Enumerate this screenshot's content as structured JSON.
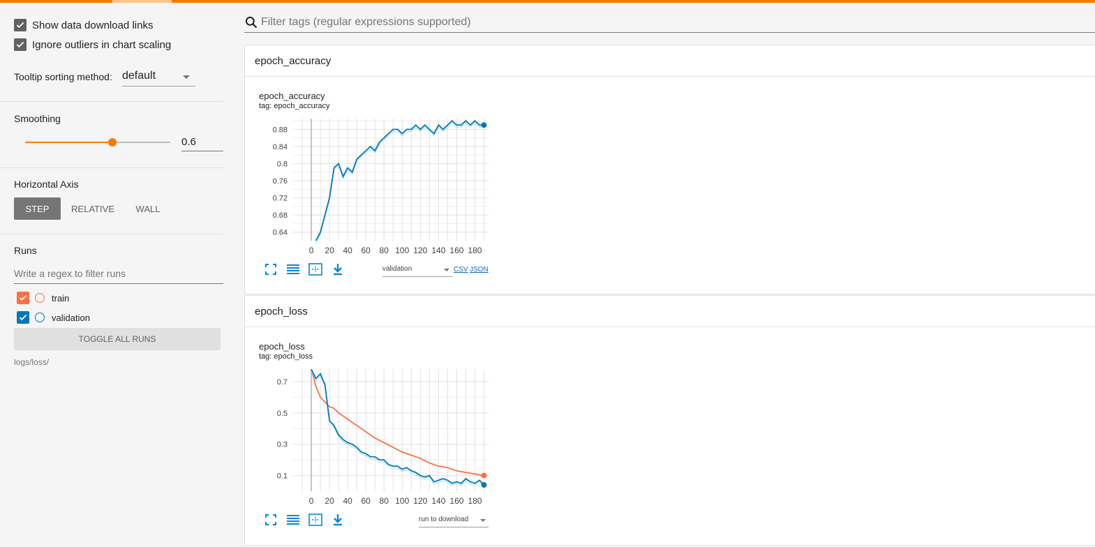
{
  "colors": {
    "accent": "#f57c00",
    "train": "#ff7043",
    "validation": "#0077bb",
    "validation_raw": "#a6d4ec"
  },
  "sidebar": {
    "show_download_links": {
      "label": "Show data download links",
      "checked": true
    },
    "ignore_outliers": {
      "label": "Ignore outliers in chart scaling",
      "checked": true
    },
    "tooltip_sorting": {
      "label": "Tooltip sorting method:",
      "value": "default"
    },
    "smoothing": {
      "title": "Smoothing",
      "value": "0.6",
      "fraction": 0.6
    },
    "horizontal_axis": {
      "title": "Horizontal Axis",
      "options": [
        "STEP",
        "RELATIVE",
        "WALL"
      ],
      "selected": "STEP"
    },
    "runs": {
      "title": "Runs",
      "filter_placeholder": "Write a regex to filter runs",
      "items": [
        {
          "label": "train",
          "checked": true,
          "color": "#ff7043"
        },
        {
          "label": "validation",
          "checked": true,
          "color": "#0077bb"
        }
      ],
      "toggle_all_label": "TOGGLE ALL RUNS",
      "logdir": "logs/loss/"
    }
  },
  "main": {
    "search_placeholder": "Filter tags (regular expressions supported)",
    "categories": [
      {
        "name": "epoch_accuracy",
        "card": {
          "title": "epoch_accuracy",
          "tag": "tag: epoch_accuracy",
          "download_select": "validation",
          "csv": "CSV",
          "json": "JSON"
        }
      },
      {
        "name": "epoch_loss",
        "card": {
          "title": "epoch_loss",
          "tag": "tag: epoch_loss",
          "download_select": "run to download"
        }
      }
    ]
  },
  "chart_data": [
    {
      "type": "line",
      "title": "epoch_accuracy",
      "xlabel": "",
      "ylabel": "",
      "xlim": [
        -20,
        195
      ],
      "ylim": [
        0.62,
        0.905
      ],
      "xticks": [
        "0",
        "20",
        "40",
        "60",
        "80",
        "100",
        "120",
        "140",
        "160",
        "180"
      ],
      "yticks": [
        "0.64",
        "0.68",
        "0.72",
        "0.76",
        "0.8",
        "0.84",
        "0.88"
      ],
      "series": [
        {
          "name": "validation",
          "x": [
            5,
            10,
            15,
            20,
            25,
            30,
            35,
            40,
            45,
            50,
            55,
            60,
            65,
            70,
            75,
            80,
            85,
            90,
            95,
            100,
            105,
            110,
            115,
            120,
            125,
            130,
            135,
            140,
            145,
            150,
            155,
            160,
            165,
            170,
            175,
            180,
            185,
            190
          ],
          "y": [
            0.62,
            0.64,
            0.68,
            0.72,
            0.79,
            0.8,
            0.77,
            0.79,
            0.78,
            0.81,
            0.82,
            0.83,
            0.84,
            0.83,
            0.85,
            0.86,
            0.87,
            0.88,
            0.88,
            0.87,
            0.88,
            0.88,
            0.89,
            0.88,
            0.89,
            0.88,
            0.87,
            0.89,
            0.88,
            0.89,
            0.9,
            0.89,
            0.89,
            0.9,
            0.89,
            0.9,
            0.89,
            0.89
          ]
        }
      ]
    },
    {
      "type": "line",
      "title": "epoch_loss",
      "xlabel": "",
      "ylabel": "",
      "xlim": [
        -20,
        195
      ],
      "ylim": [
        0.0,
        0.78
      ],
      "xticks": [
        "0",
        "20",
        "40",
        "60",
        "80",
        "100",
        "120",
        "140",
        "160",
        "180"
      ],
      "yticks": [
        "0.1",
        "0.3",
        "0.5",
        "0.7"
      ],
      "series": [
        {
          "name": "train",
          "x": [
            0,
            5,
            10,
            15,
            20,
            25,
            30,
            40,
            50,
            60,
            70,
            80,
            90,
            100,
            110,
            120,
            130,
            140,
            150,
            160,
            170,
            180,
            190
          ],
          "y": [
            0.78,
            0.67,
            0.6,
            0.57,
            0.54,
            0.53,
            0.5,
            0.46,
            0.42,
            0.38,
            0.34,
            0.31,
            0.28,
            0.25,
            0.23,
            0.21,
            0.18,
            0.16,
            0.15,
            0.13,
            0.12,
            0.11,
            0.1
          ]
        },
        {
          "name": "validation",
          "x": [
            0,
            5,
            10,
            15,
            20,
            25,
            30,
            35,
            40,
            45,
            50,
            55,
            60,
            65,
            70,
            75,
            80,
            85,
            90,
            95,
            100,
            105,
            110,
            115,
            120,
            125,
            130,
            135,
            140,
            145,
            150,
            155,
            160,
            165,
            170,
            175,
            180,
            185,
            190
          ],
          "y": [
            0.78,
            0.72,
            0.75,
            0.68,
            0.45,
            0.42,
            0.36,
            0.33,
            0.31,
            0.3,
            0.28,
            0.25,
            0.24,
            0.22,
            0.22,
            0.2,
            0.2,
            0.17,
            0.16,
            0.16,
            0.14,
            0.15,
            0.13,
            0.12,
            0.1,
            0.09,
            0.1,
            0.06,
            0.07,
            0.08,
            0.07,
            0.05,
            0.06,
            0.05,
            0.08,
            0.06,
            0.05,
            0.07,
            0.04
          ]
        }
      ]
    }
  ]
}
